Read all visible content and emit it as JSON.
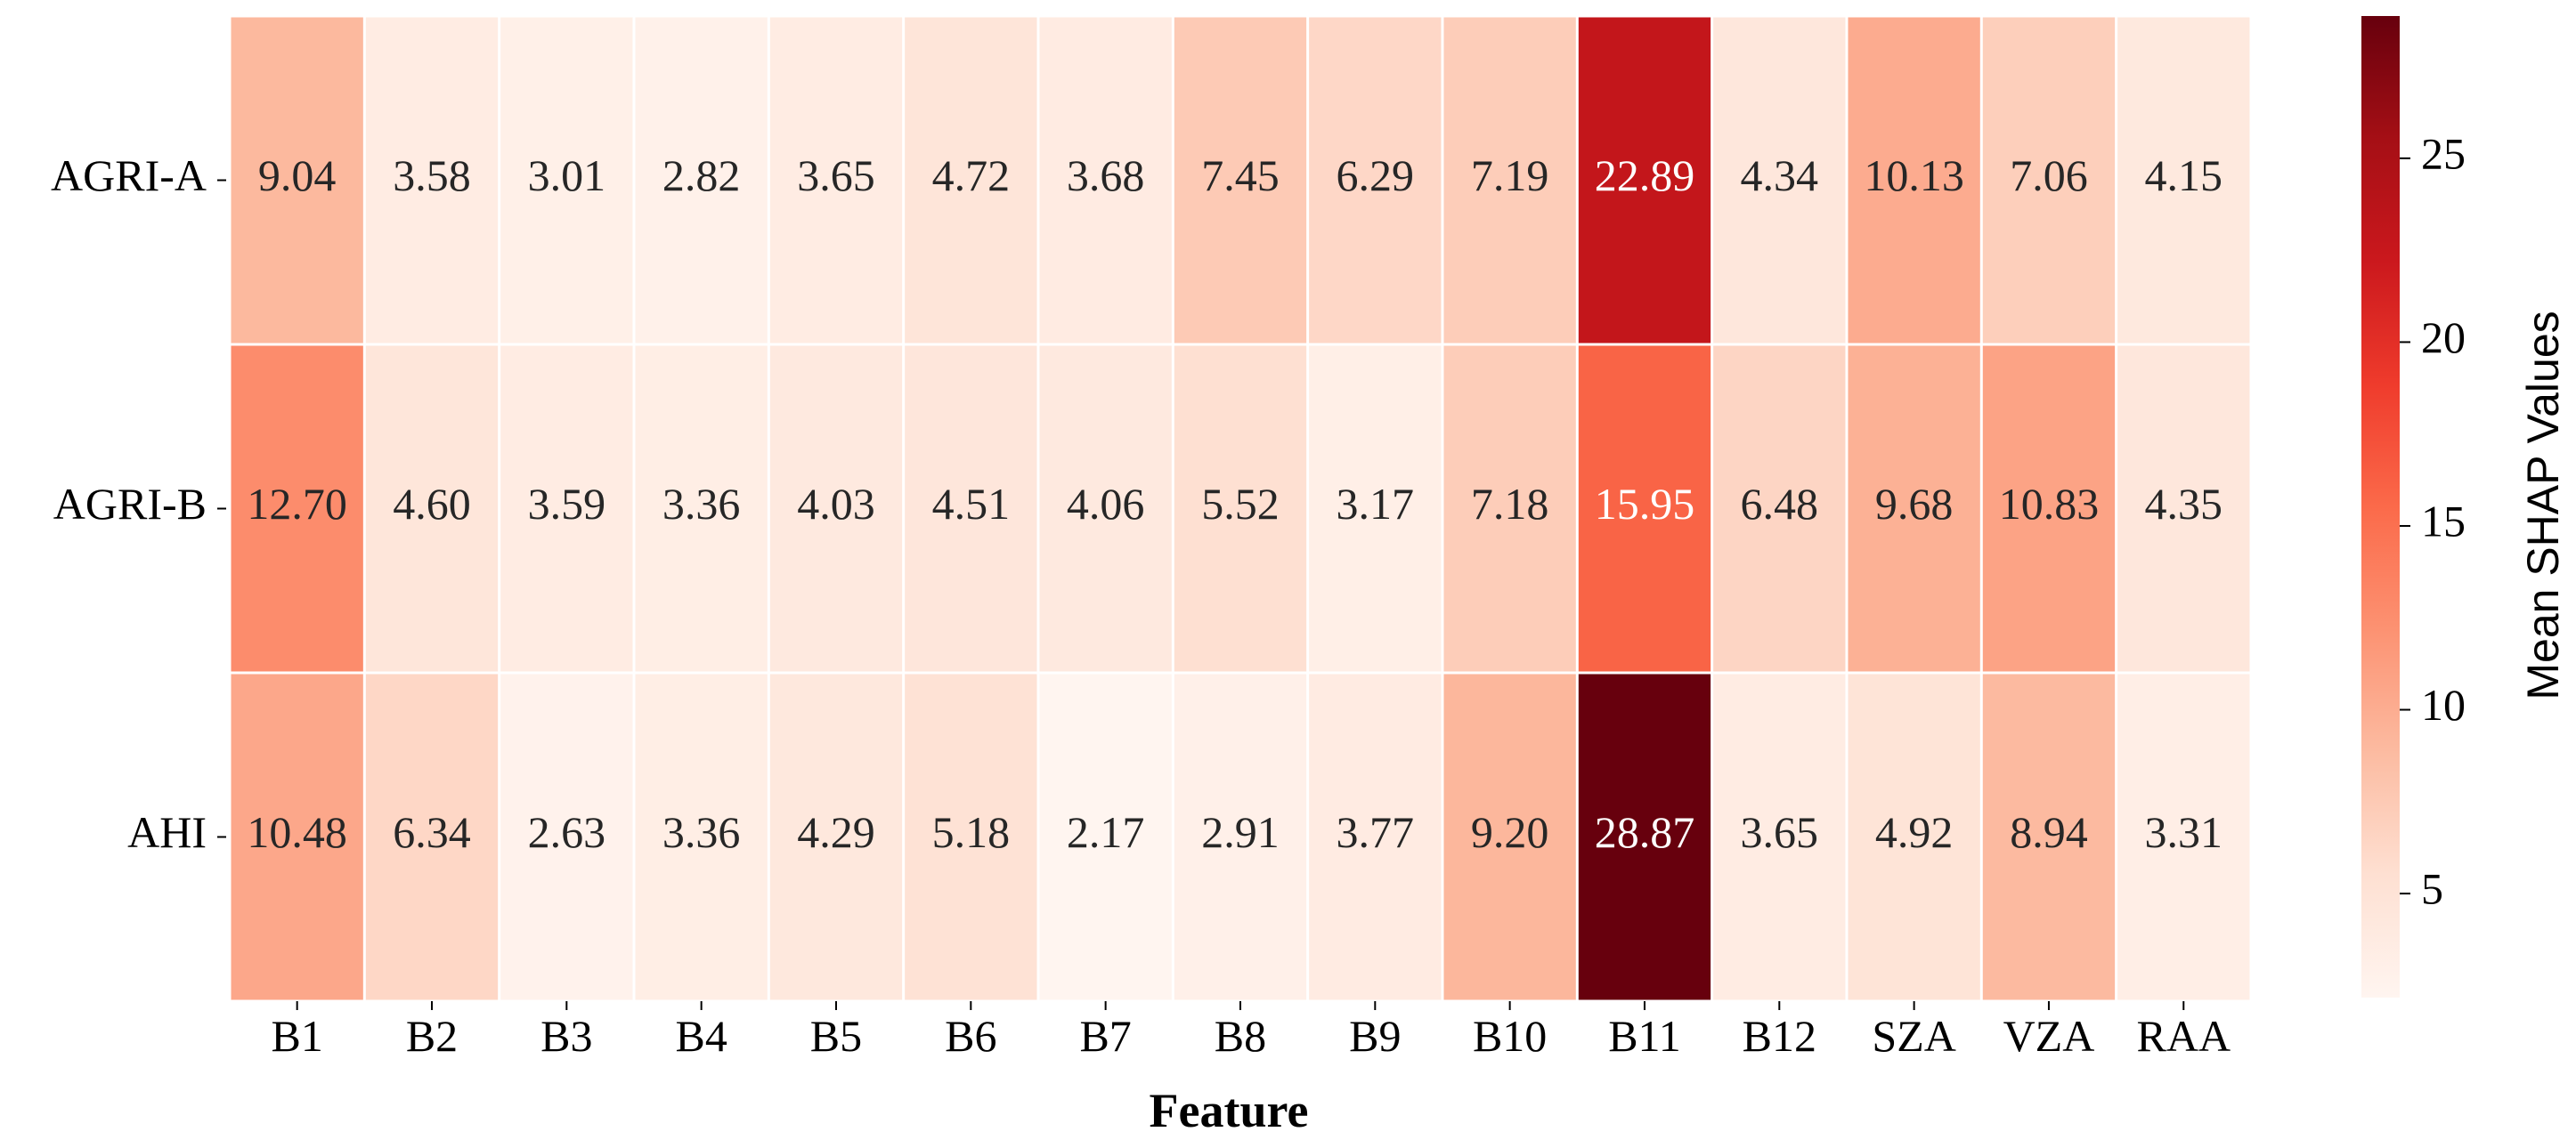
{
  "chart_data": {
    "type": "heatmap",
    "title": "",
    "xlabel": "Feature",
    "ylabel": "",
    "x_categories": [
      "B1",
      "B2",
      "B3",
      "B4",
      "B5",
      "B6",
      "B7",
      "B8",
      "B9",
      "B10",
      "B11",
      "B12",
      "SZA",
      "VZA",
      "RAA"
    ],
    "y_categories": [
      "AGRI-A",
      "AGRI-B",
      "AHI"
    ],
    "values": [
      [
        9.04,
        3.58,
        3.01,
        2.82,
        3.65,
        4.72,
        3.68,
        7.45,
        6.29,
        7.19,
        22.89,
        4.34,
        10.13,
        7.06,
        4.15
      ],
      [
        12.7,
        4.6,
        3.59,
        3.36,
        4.03,
        4.51,
        4.06,
        5.52,
        3.17,
        7.18,
        15.95,
        6.48,
        9.68,
        10.83,
        4.35
      ],
      [
        10.48,
        6.34,
        2.63,
        3.36,
        4.29,
        5.18,
        2.17,
        2.91,
        3.77,
        9.2,
        28.87,
        3.65,
        4.92,
        8.94,
        3.31
      ]
    ],
    "annotation_format": "2f",
    "colormap": "Reds",
    "colorbar": {
      "label": "Mean SHAP Values",
      "vmin": 2.17,
      "vmax": 28.87,
      "ticks": [
        5,
        10,
        15,
        20,
        25
      ]
    }
  }
}
